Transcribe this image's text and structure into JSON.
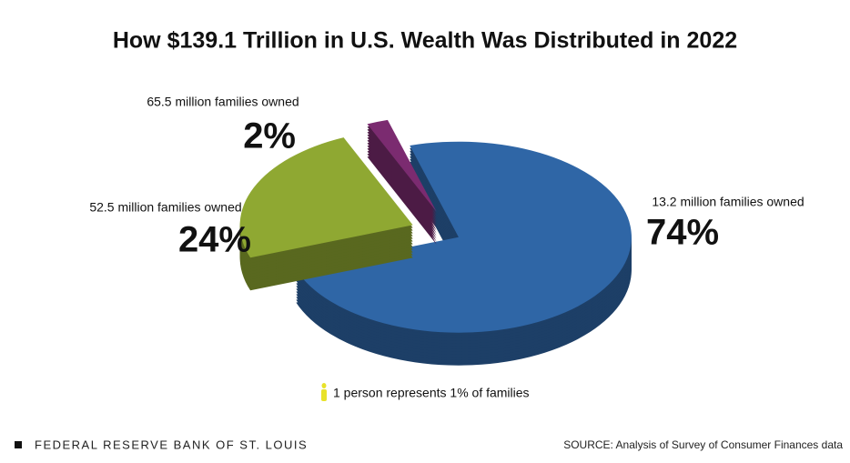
{
  "chart_data": {
    "type": "pie",
    "title": "How $139.1 Trillion in U.S. Wealth Was Distributed in 2022",
    "categories": [
      "52.5 million families owned",
      "65.5 million families owned",
      "13.2 million families owned"
    ],
    "values": [
      24,
      2,
      74
    ],
    "value_labels": [
      "24%",
      "2%",
      "74%"
    ],
    "colors": [
      "#8fa832",
      "#7b2b70",
      "#2f66a6"
    ],
    "annotation": "1 person represents 1% of families",
    "footer": "FEDERAL RESERVE BANK OF ST. LOUIS",
    "source": "SOURCE: Analysis of Survey of Consumer Finances data"
  }
}
